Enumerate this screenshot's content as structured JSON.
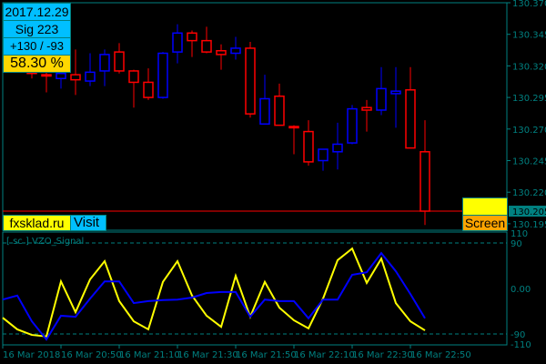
{
  "info_panel": {
    "date": "2017.12.29",
    "signal": "Sig  223",
    "score": "+130 / -93",
    "percent": "58.30 %"
  },
  "links": {
    "site": "fxsklad.ru",
    "visit": "Visit",
    "screen": "Screen"
  },
  "indicator": {
    "title": "[ sc ] VZO_Signal",
    "levels": [
      "110",
      "90",
      "0.00",
      "-90",
      "-110"
    ]
  },
  "colors": {
    "bull": "#0000ff",
    "bear": "#ff0000",
    "frame": "#008080",
    "signal": "#ffff00",
    "main_line": "#0000ff",
    "price_line": "#ff0000"
  },
  "chart_data": [
    {
      "type": "candlestick",
      "ylim": [
        130.195,
        130.37
      ],
      "y_ticks": [
        "130.370",
        "130.345",
        "130.320",
        "130.295",
        "130.270",
        "130.245",
        "130.220",
        "130.195"
      ],
      "current_price": "130.205",
      "x_ticks": [
        "16 Mar 2018",
        "16 Mar 20:50",
        "16 Mar 21:10",
        "16 Mar 21:30",
        "16 Mar 21:50",
        "16 Mar 22:10",
        "16 Mar 22:30",
        "16 Mar 22:50"
      ],
      "ohlc": [
        [
          130.315,
          130.316,
          130.31,
          130.314
        ],
        [
          130.313,
          130.318,
          130.299,
          130.312
        ],
        [
          130.31,
          130.315,
          130.302,
          130.314
        ],
        [
          130.313,
          130.333,
          130.297,
          130.309
        ],
        [
          130.308,
          130.33,
          130.304,
          130.315
        ],
        [
          130.316,
          130.333,
          130.304,
          130.329
        ],
        [
          130.331,
          130.338,
          130.314,
          130.316
        ],
        [
          130.316,
          130.317,
          130.287,
          130.307
        ],
        [
          130.307,
          130.318,
          130.293,
          130.295
        ],
        [
          130.295,
          130.331,
          130.294,
          130.33
        ],
        [
          130.331,
          130.353,
          130.322,
          130.346
        ],
        [
          130.346,
          130.348,
          130.327,
          130.34
        ],
        [
          130.34,
          130.351,
          130.33,
          130.331
        ],
        [
          130.332,
          130.337,
          130.317,
          130.329
        ],
        [
          130.33,
          130.343,
          130.325,
          130.334
        ],
        [
          130.334,
          130.339,
          130.279,
          130.282
        ],
        [
          130.274,
          130.313,
          130.274,
          130.294
        ],
        [
          130.296,
          130.306,
          130.273,
          130.273
        ],
        [
          130.272,
          130.273,
          130.25,
          130.271
        ],
        [
          130.268,
          130.277,
          130.241,
          130.244
        ],
        [
          130.245,
          130.254,
          130.237,
          130.254
        ],
        [
          130.252,
          130.275,
          130.238,
          130.258
        ],
        [
          130.259,
          130.289,
          130.258,
          130.286
        ],
        [
          130.287,
          130.293,
          130.268,
          130.285
        ],
        [
          130.285,
          130.319,
          130.281,
          130.302
        ],
        [
          130.298,
          130.319,
          130.271,
          130.3
        ],
        [
          130.301,
          130.319,
          130.255,
          130.255
        ],
        [
          130.252,
          130.277,
          130.194,
          130.205
        ]
      ]
    },
    {
      "type": "line",
      "ylim": [
        -110,
        110
      ],
      "levels": [
        90,
        0,
        -90
      ],
      "series": [
        {
          "color": "#ffff00",
          "values": [
            -58,
            -81,
            -92,
            -95,
            14,
            -47,
            18,
            54,
            -25,
            -65,
            -81,
            13,
            54,
            -14,
            -54,
            -76,
            25,
            -56,
            13,
            -38,
            -63,
            -79,
            -20,
            56,
            79,
            11,
            59,
            -29,
            -65,
            -83
          ]
        },
        {
          "color": "#0000ff",
          "values": [
            -22,
            -14,
            -65,
            -101,
            -54,
            -56,
            -20,
            14,
            14,
            -29,
            -25,
            -23,
            -22,
            -18,
            -9,
            -7,
            -7,
            -56,
            -22,
            -25,
            -25,
            -59,
            -22,
            -22,
            27,
            32,
            70,
            34,
            -11,
            -59
          ]
        }
      ]
    }
  ]
}
